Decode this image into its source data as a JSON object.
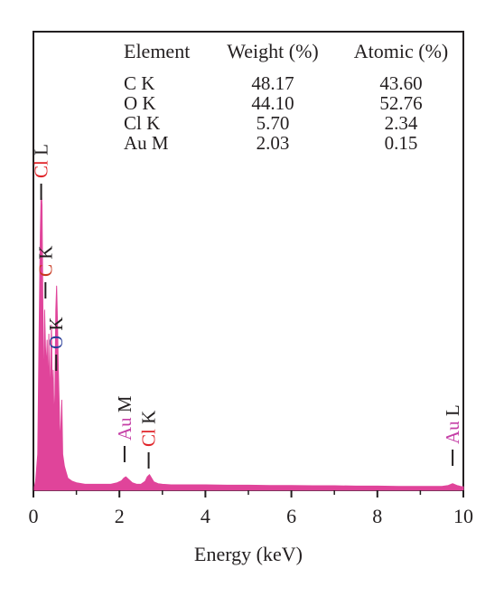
{
  "chart_data": {
    "type": "area",
    "title": "",
    "xlabel": "Energy (keV)",
    "ylabel": "",
    "xlim": [
      0,
      10
    ],
    "x_ticks": [
      0,
      2,
      4,
      6,
      8,
      10
    ],
    "ylim": [
      0,
      100
    ],
    "grid": false,
    "legend": "none",
    "series": [
      {
        "color": "#e0449a",
        "x": [
          0.02,
          0.05,
          0.1,
          0.13,
          0.16,
          0.18,
          0.2,
          0.22,
          0.24,
          0.26,
          0.28,
          0.3,
          0.32,
          0.34,
          0.36,
          0.38,
          0.4,
          0.42,
          0.44,
          0.46,
          0.48,
          0.5,
          0.52,
          0.54,
          0.56,
          0.58,
          0.6,
          0.62,
          0.64,
          0.66,
          0.68,
          0.72,
          0.76,
          0.8,
          0.9,
          1.0,
          1.2,
          1.4,
          1.6,
          1.8,
          1.95,
          2.05,
          2.1,
          2.15,
          2.2,
          2.3,
          2.4,
          2.5,
          2.6,
          2.65,
          2.7,
          2.75,
          2.8,
          2.9,
          3.0,
          3.2,
          3.5,
          4.0,
          4.5,
          5.0,
          5.5,
          6.0,
          6.5,
          7.0,
          7.5,
          8.0,
          8.5,
          9.0,
          9.5,
          9.65,
          9.75,
          9.85,
          9.95,
          10.0
        ],
        "y": [
          1,
          3,
          12,
          50,
          85,
          100,
          95,
          60,
          25,
          60,
          48,
          40,
          50,
          30,
          52,
          28,
          42,
          55,
          30,
          40,
          22,
          32,
          60,
          68,
          55,
          40,
          28,
          15,
          22,
          30,
          12,
          8,
          6,
          4,
          3,
          2.5,
          2,
          2,
          2,
          2,
          2.5,
          3.2,
          4,
          4.5,
          3.8,
          2.5,
          2,
          2,
          3,
          4.5,
          5.2,
          4,
          2.8,
          2.2,
          2,
          1.8,
          1.8,
          1.8,
          1.7,
          1.7,
          1.6,
          1.6,
          1.5,
          1.5,
          1.4,
          1.4,
          1.3,
          1.3,
          1.3,
          1.6,
          2.2,
          1.6,
          1.2,
          1.2
        ]
      }
    ],
    "peak_labels": [
      {
        "element": "Cl",
        "line": "L",
        "color": "#e0252a",
        "x": 0.18
      },
      {
        "element": "C",
        "line": "K",
        "color": "#c8381f",
        "x": 0.28
      },
      {
        "element": "O",
        "line": "K",
        "color": "#2a3f9a",
        "x": 0.53
      },
      {
        "element": "Au",
        "line": "M",
        "color": "#c53fa6",
        "x": 2.12
      },
      {
        "element": "Cl",
        "line": "K",
        "color": "#e0252a",
        "x": 2.68
      },
      {
        "element": "Au",
        "line": "L",
        "color": "#c53fa6",
        "x": 9.75
      }
    ],
    "table": {
      "headers": [
        "Element",
        "Weight (%)",
        "Atomic (%)"
      ],
      "rows": [
        [
          "C K",
          "48.17",
          "43.60"
        ],
        [
          "O K",
          "44.10",
          "52.76"
        ],
        [
          "Cl K",
          "5.70",
          "2.34"
        ],
        [
          "Au M",
          "2.03",
          "0.15"
        ]
      ]
    }
  }
}
